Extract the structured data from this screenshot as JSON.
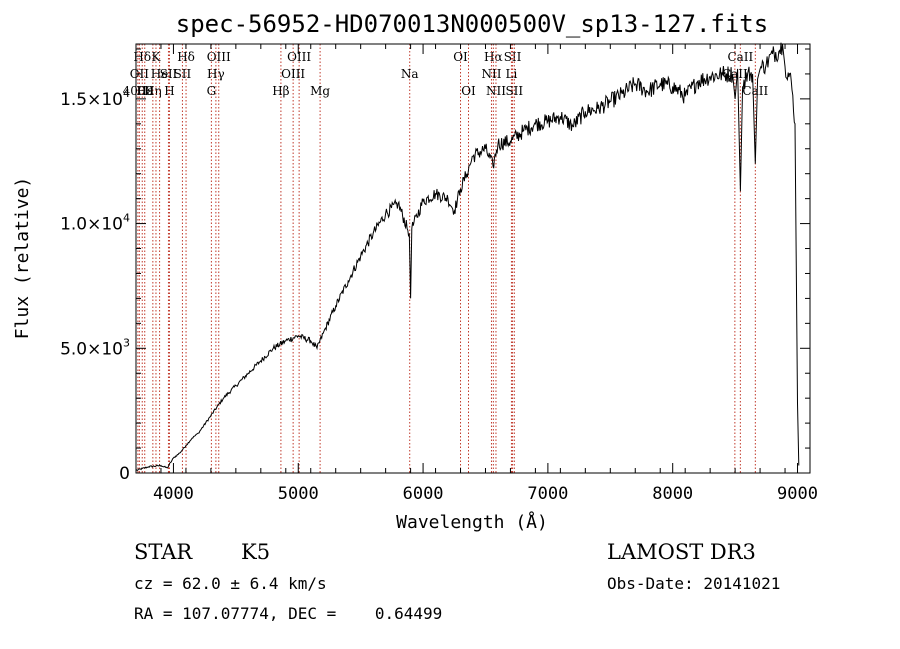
{
  "chart_data": {
    "type": "line",
    "title": "spec-56952-HD070013N000500V_sp13-127.fits",
    "xlabel": "Wavelength (Å)",
    "ylabel": "Flux (relative)",
    "xlim": [
      3700,
      9100
    ],
    "ylim": [
      0,
      17200
    ],
    "x_ticks": [
      4000,
      5000,
      6000,
      7000,
      8000,
      9000
    ],
    "x_tick_labels": [
      "4000",
      "5000",
      "6000",
      "7000",
      "8000",
      "9000"
    ],
    "y_ticks": [
      0,
      5000,
      10000,
      15000
    ],
    "y_tick_labels": [
      {
        "mantissa": "0",
        "exp": ""
      },
      {
        "mantissa": "5.0×10",
        "exp": "3"
      },
      {
        "mantissa": "1.0×10",
        "exp": "4"
      },
      {
        "mantissa": "1.5×10",
        "exp": "4"
      }
    ],
    "series": [
      {
        "name": "spectrum",
        "color": "#000000",
        "x": [
          3700,
          3800,
          3900,
          3950,
          4000,
          4050,
          4100,
          4150,
          4200,
          4300,
          4400,
          4500,
          4600,
          4700,
          4800,
          4900,
          5000,
          5100,
          5150,
          5200,
          5300,
          5400,
          5500,
          5600,
          5700,
          5800,
          5890,
          5900,
          5910,
          6000,
          6100,
          6200,
          6250,
          6300,
          6350,
          6400,
          6500,
          6560,
          6600,
          6700,
          6800,
          6900,
          7000,
          7100,
          7200,
          7300,
          7400,
          7500,
          7600,
          7700,
          7800,
          7900,
          8000,
          8100,
          8200,
          8300,
          8400,
          8480,
          8500,
          8520,
          8542,
          8560,
          8600,
          8640,
          8662,
          8680,
          8700,
          8750,
          8800,
          8850,
          8880,
          8900,
          8950,
          8980,
          9000,
          9010
        ],
        "y": [
          100,
          250,
          300,
          200,
          600,
          800,
          1100,
          1400,
          1600,
          2300,
          3000,
          3500,
          4000,
          4500,
          5000,
          5300,
          5500,
          5300,
          5000,
          5600,
          6700,
          7700,
          8700,
          9600,
          10400,
          10800,
          9600,
          7000,
          9800,
          10900,
          11200,
          11000,
          10500,
          11400,
          12000,
          12700,
          13000,
          12300,
          13200,
          13300,
          13700,
          14000,
          14100,
          14300,
          13900,
          14500,
          14600,
          14900,
          15200,
          15600,
          15300,
          15600,
          15500,
          15100,
          15700,
          15900,
          16000,
          16000,
          15000,
          16200,
          11300,
          15500,
          16000,
          16000,
          12400,
          15800,
          16200,
          16400,
          16800,
          16900,
          17200,
          16300,
          15700,
          14000,
          2800,
          300
        ]
      }
    ],
    "line_markers": [
      {
        "label": "Hδ",
        "x": 3750,
        "row": 0
      },
      {
        "label": "OII",
        "x": 3727,
        "row": 1
      },
      {
        "label": "4000",
        "x": 3715,
        "row": 2
      },
      {
        "label": "Hε",
        "x": 3770,
        "row": 2
      },
      {
        "label": "Hη",
        "x": 3835,
        "row": 2
      },
      {
        "label": "K",
        "x": 3860,
        "row": 0
      },
      {
        "label": "He",
        "x": 3889,
        "row": 1
      },
      {
        "label": "H",
        "x": 3968,
        "row": 2
      },
      {
        "label": "SII",
        "x": 3960,
        "row": 1
      },
      {
        "label": "Hδ",
        "x": 4101,
        "row": 0
      },
      {
        "label": "SII",
        "x": 4072,
        "row": 1
      },
      {
        "label": "OIII",
        "x": 4363,
        "row": 0
      },
      {
        "label": "Hγ",
        "x": 4340,
        "row": 1
      },
      {
        "label": "G",
        "x": 4304,
        "row": 2
      },
      {
        "label": "Hβ",
        "x": 4861,
        "row": 2
      },
      {
        "label": "OIII",
        "x": 5007,
        "row": 0
      },
      {
        "label": "OIII",
        "x": 4959,
        "row": 1
      },
      {
        "label": "Mg",
        "x": 5175,
        "row": 2
      },
      {
        "label": "Na",
        "x": 5893,
        "row": 1
      },
      {
        "label": "OI",
        "x": 6300,
        "row": 0
      },
      {
        "label": "OI",
        "x": 6364,
        "row": 2
      },
      {
        "label": "Hα",
        "x": 6563,
        "row": 0
      },
      {
        "label": "NII",
        "x": 6548,
        "row": 1
      },
      {
        "label": "NII",
        "x": 6584,
        "row": 2
      },
      {
        "label": "SII",
        "x": 6717,
        "row": 0
      },
      {
        "label": "Li",
        "x": 6708,
        "row": 1
      },
      {
        "label": "SII",
        "x": 6731,
        "row": 2
      },
      {
        "label": "CaII",
        "x": 8542,
        "row": 0
      },
      {
        "label": "CaII",
        "x": 8498,
        "row": 1
      },
      {
        "label": "CaII",
        "x": 8662,
        "row": 2
      }
    ],
    "marker_color": "#c0392b"
  },
  "info": {
    "object_type": "STAR",
    "subclass": "K5",
    "survey": "LAMOST DR3",
    "cz_line": "cz = 62.0 ± 6.4 km/s",
    "obs_date_line": "Obs-Date: 20141021",
    "radec_line": "RA = 107.07774, DEC =    0.64499"
  }
}
